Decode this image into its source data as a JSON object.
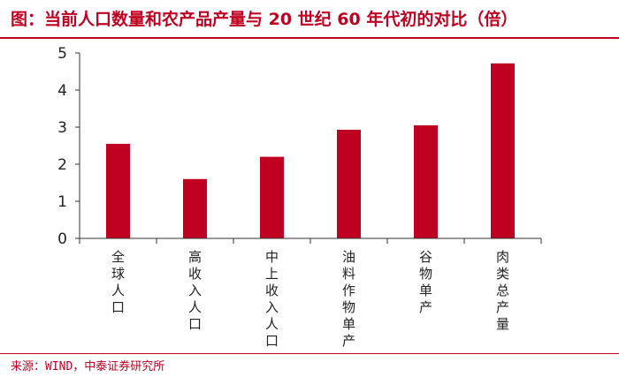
{
  "header": {
    "title": "图：当前人口数量和农产品产量与 20 世纪 60 年代初的对比（倍）"
  },
  "footer": {
    "source": "来源：WIND，中泰证券研究所"
  },
  "colors": {
    "accent": "#c00020",
    "bar": "#c00020",
    "axis": "#333333"
  },
  "chart_data": {
    "type": "bar",
    "title": "图：当前人口数量和农产品产量与 20 世纪 60 年代初的对比（倍）",
    "xlabel": "",
    "ylabel": "",
    "ylim": [
      0,
      5
    ],
    "yticks": [
      0,
      1,
      2,
      3,
      4,
      5
    ],
    "grid": false,
    "categories": [
      "全球人口",
      "高收入人口",
      "中上收入人口",
      "油料作物单产",
      "谷物单产",
      "肉类总产量"
    ],
    "values": [
      2.55,
      1.6,
      2.2,
      2.93,
      3.05,
      4.72
    ]
  }
}
